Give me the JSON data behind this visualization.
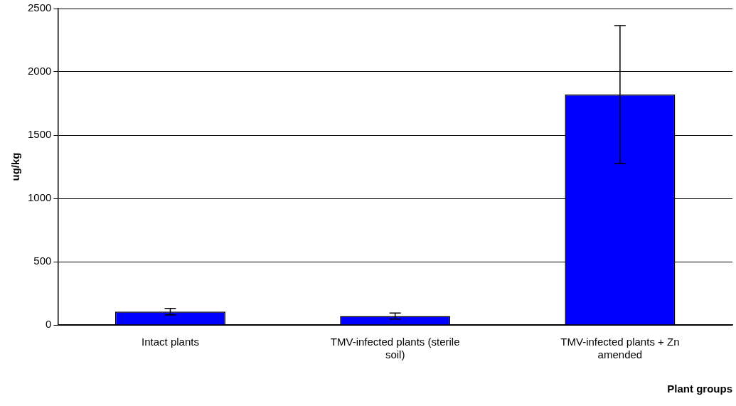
{
  "chart_data": {
    "type": "bar",
    "xlabel": "Plant groups",
    "ylabel": "ug/kg",
    "categories": [
      "Intact plants",
      "TMV-infected plants (sterile soil)",
      "TMV-infected plants + Zn amended"
    ],
    "values": [
      105,
      70,
      1820
    ],
    "errors": [
      25,
      24,
      545
    ],
    "color": "#0000ff",
    "ylim": [
      0,
      2500
    ],
    "yticks": [
      0,
      500,
      1000,
      1500,
      2000,
      2500
    ],
    "grid": "y",
    "legend": false
  }
}
